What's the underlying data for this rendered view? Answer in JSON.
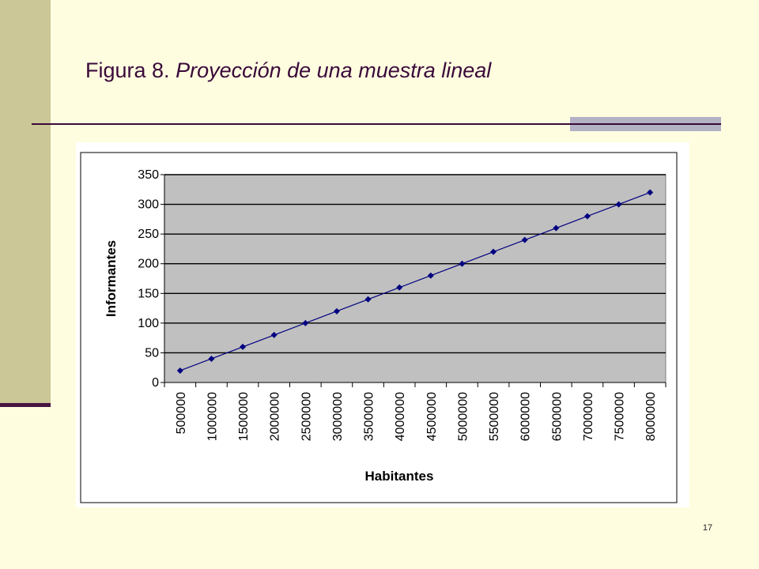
{
  "slide": {
    "title_prefix": "Figura 8. ",
    "title_emphasis": "Proyección de una muestra lineal",
    "page_number": "17"
  },
  "colors": {
    "background": "#fffde0",
    "left_bar": "#cbc796",
    "accent": "#4a1440",
    "plot_area": "#c0c0c0",
    "series": "#000080"
  },
  "chart_data": {
    "type": "line",
    "title": "",
    "xlabel": "Habitantes",
    "ylabel": "Informantes",
    "categories": [
      "500000",
      "1000000",
      "1500000",
      "2000000",
      "2500000",
      "3000000",
      "3500000",
      "4000000",
      "4500000",
      "5000000",
      "5500000",
      "6000000",
      "6500000",
      "7000000",
      "7500000",
      "8000000"
    ],
    "series": [
      {
        "values": [
          20,
          40,
          60,
          80,
          100,
          120,
          140,
          160,
          180,
          200,
          220,
          240,
          260,
          280,
          300,
          320
        ]
      }
    ],
    "y_ticks": [
      0,
      50,
      100,
      150,
      200,
      250,
      300,
      350
    ],
    "ylim": [
      0,
      350
    ],
    "grid": true,
    "legend": "none",
    "marker": "diamond"
  }
}
